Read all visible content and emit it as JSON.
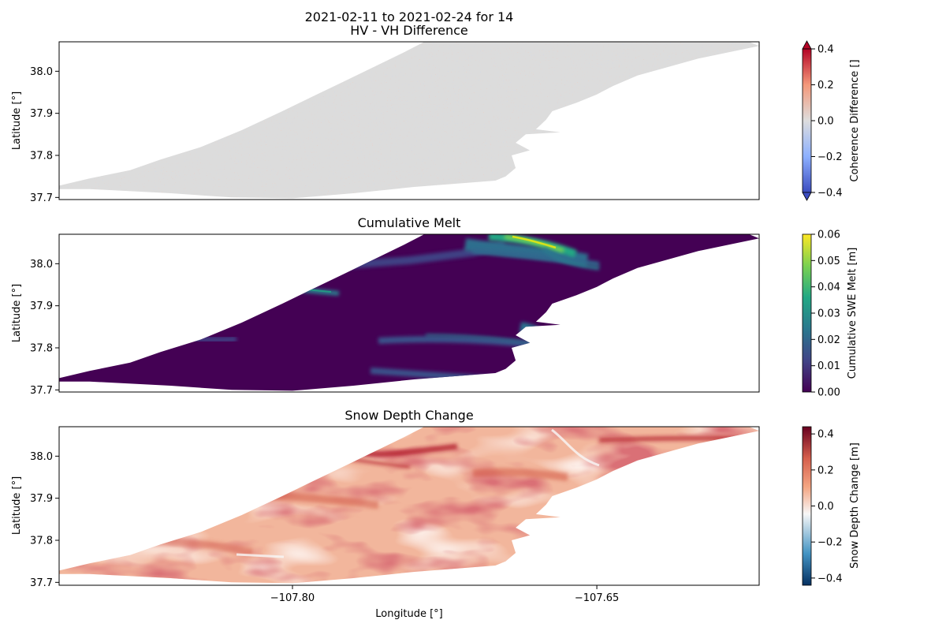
{
  "figure": {
    "title_line1": "2021-02-11 to 2021-02-24 for 14",
    "xlabel": "Longitude [°]"
  },
  "chart_data": [
    {
      "type": "heatmap",
      "title": "HV - VH Difference",
      "ylabel": "Latitude [°]",
      "xlim": [
        -107.915,
        -107.57
      ],
      "ylim": [
        37.695,
        38.07
      ],
      "yticks": [
        "37.7",
        "37.8",
        "37.9",
        "38.0"
      ],
      "xticks": [],
      "colormap": "coolwarm",
      "colorbar": {
        "label": "Coherence Difference []",
        "ticks": [
          "−0.4",
          "−0.2",
          "0.0",
          "0.2",
          "0.4"
        ],
        "range": [
          -0.4,
          0.4
        ],
        "extend": "both",
        "colors": [
          "#3b4cc0",
          "#8db0fe",
          "#dddddd",
          "#f4987a",
          "#b40426"
        ]
      },
      "dominant_value": 0.0
    },
    {
      "type": "heatmap",
      "title": "Cumulative Melt",
      "ylabel": "Latitude [°]",
      "xlim": [
        -107.915,
        -107.57
      ],
      "ylim": [
        37.695,
        38.07
      ],
      "yticks": [
        "37.7",
        "37.8",
        "37.9",
        "38.0"
      ],
      "xticks": [],
      "colormap": "viridis",
      "colorbar": {
        "label": "Cumulative SWE Melt [m]",
        "ticks": [
          "0.00",
          "0.01",
          "0.02",
          "0.03",
          "0.04",
          "0.05",
          "0.06"
        ],
        "range": [
          0.0,
          0.06
        ],
        "colors": [
          "#440154",
          "#414487",
          "#2a788e",
          "#22a884",
          "#7ad151",
          "#fde725"
        ]
      },
      "dominant_value": 0.0,
      "max_value": 0.06
    },
    {
      "type": "heatmap",
      "title": "Snow Depth Change",
      "ylabel": "Latitude [°]",
      "xlim": [
        -107.915,
        -107.57
      ],
      "ylim": [
        37.695,
        38.07
      ],
      "yticks": [
        "37.7",
        "37.8",
        "37.9",
        "38.0"
      ],
      "xticks": [
        "−107.80",
        "−107.65"
      ],
      "xtick_values": [
        -107.8,
        -107.65
      ],
      "colormap": "RdBu_r",
      "colorbar": {
        "label": "Snow Depth Change [m]",
        "ticks": [
          "−0.4",
          "−0.2",
          "0.0",
          "0.2",
          "0.4"
        ],
        "range": [
          -0.44,
          0.44
        ],
        "colors": [
          "#053061",
          "#4393c3",
          "#f7f7f7",
          "#f4a582",
          "#d6604d",
          "#67001f"
        ]
      },
      "dominant_value": 0.15,
      "max_value": 0.44
    }
  ]
}
